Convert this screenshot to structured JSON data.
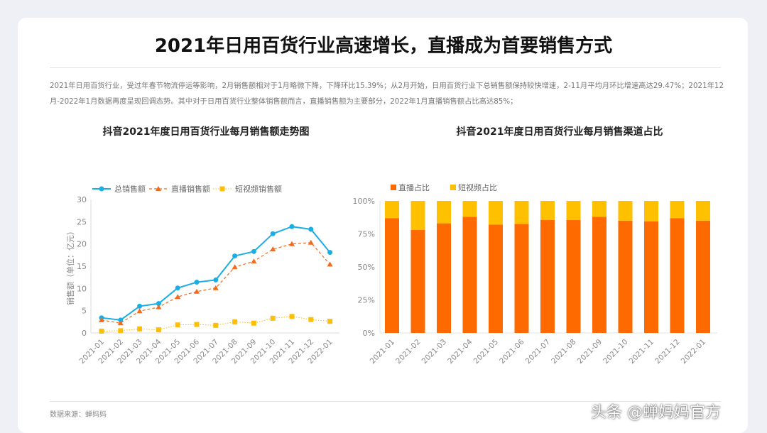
{
  "title": "2021年日用百货行业高速增长，直播成为首要销售方式",
  "paragraph": "2021年日用百货行业，受过年春节物流停运等影响，2月销售额相对于1月略微下降，下降环比15.39%；从2月开始，日用百货行业下总销售额保持较快增速，2-11月平均月环比增速高达29.47%；2021年12月-2022年1月数据再度呈现回调态势。其中对于日用百货行业整体销售额而言，直播销售额为主要部分，2022年1月直播销售额占比高达85%；",
  "source": "数据来源：蝉妈妈",
  "watermark": "头条 @蝉妈妈官方",
  "chart_data": [
    {
      "type": "line",
      "title": "抖音2021年度日用百货行业每月销售额走势图",
      "ylabel": "销售额（单位：亿元）",
      "ylim": [
        0,
        30
      ],
      "yticks": [
        "0",
        "5",
        "10",
        "15",
        "20",
        "25",
        "30"
      ],
      "legend": "top",
      "categories": [
        "2021-01",
        "2021-02",
        "2021-03",
        "2021-04",
        "2021-05",
        "2021-06",
        "2021-07",
        "2021-08",
        "2021-09",
        "2021-10",
        "2021-11",
        "2021-12",
        "2022-01"
      ],
      "series": [
        {
          "name": "总销售额",
          "color": "#1aaee6",
          "style": "solid-circle",
          "values": [
            3.4,
            2.9,
            6.0,
            6.6,
            10.1,
            11.4,
            11.9,
            17.3,
            18.3,
            22.3,
            23.9,
            23.3,
            18.1
          ]
        },
        {
          "name": "直播销售额",
          "color": "#f26b1d",
          "style": "dashed-triangle",
          "values": [
            2.9,
            2.2,
            4.9,
            5.8,
            8.1,
            9.3,
            10.1,
            14.8,
            16.1,
            18.8,
            20.0,
            20.3,
            15.4
          ]
        },
        {
          "name": "短视频销售额",
          "color": "#fbbf0a",
          "style": "dotted-square",
          "values": [
            0.4,
            0.5,
            0.9,
            0.7,
            1.8,
            1.9,
            1.7,
            2.5,
            2.2,
            3.3,
            3.7,
            3.0,
            2.6
          ]
        }
      ]
    },
    {
      "type": "bar",
      "stacked": true,
      "title": "抖音2021年度日用百货行业每月销售渠道占比",
      "ylim": [
        0,
        100
      ],
      "yticks": [
        "0%",
        "25%",
        "50%",
        "75%",
        "100%"
      ],
      "legend": "top-left",
      "categories": [
        "2021-01",
        "2021-02",
        "2021-03",
        "2021-04",
        "2021-05",
        "2021-06",
        "2021-07",
        "2021-08",
        "2021-09",
        "2021-10",
        "2021-11",
        "2021-12",
        "2022-01"
      ],
      "series": [
        {
          "name": "直播占比",
          "color": "#ff6a00",
          "values": [
            87,
            78,
            83,
            88,
            82,
            82.5,
            85.5,
            85.5,
            88,
            85,
            84.5,
            87,
            85
          ]
        },
        {
          "name": "短视频占比",
          "color": "#ffc000",
          "values": [
            13,
            22,
            17,
            12,
            18,
            17.5,
            14.5,
            14.5,
            12,
            15,
            15.5,
            13,
            15
          ]
        }
      ]
    }
  ]
}
